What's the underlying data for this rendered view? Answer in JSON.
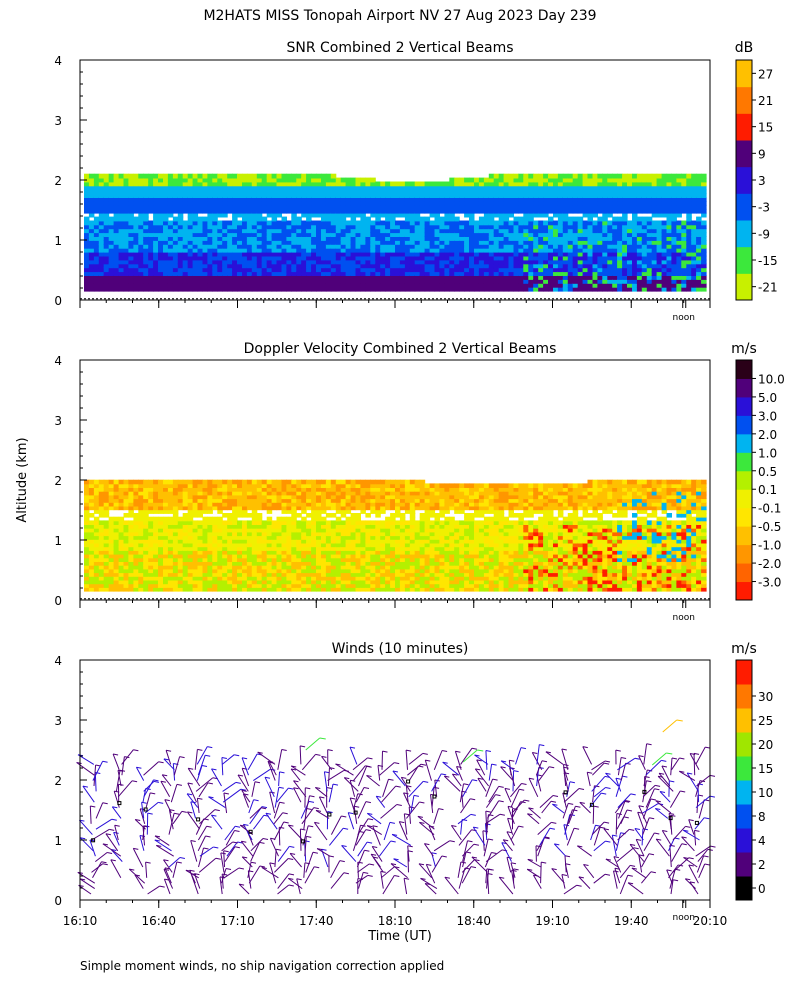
{
  "title": "M2HATS MISS Tonopah Airport NV  27 Aug 2023 Day 239",
  "ylabel": "Altitude (km)",
  "xlabel": "Time (UT)",
  "footnote": "Simple moment winds, no ship navigation correction applied",
  "noon_label": "noon",
  "chart_data": [
    {
      "type": "heatmap",
      "title": "SNR Combined 2 Vertical Beams",
      "units": "dB",
      "ylim": [
        0,
        4
      ],
      "yticks": [
        "0",
        "1",
        "2",
        "3",
        "4"
      ],
      "time_range": [
        "16:10",
        "20:10"
      ],
      "data_top_km": 2.1,
      "colorbar": {
        "labels": [
          "-21",
          "-15",
          "-9",
          "-3",
          "3",
          "9",
          "15",
          "21",
          "27"
        ],
        "colors": [
          "#c8f000",
          "#3ce83c",
          "#00b4f0",
          "#0050f0",
          "#2a10d8",
          "#50007a",
          "#ff1c00",
          "#ff7800",
          "#ffc000"
        ]
      }
    },
    {
      "type": "heatmap",
      "title": "Doppler Velocity Combined 2 Vertical Beams",
      "units": "m/s",
      "ylim": [
        0,
        4
      ],
      "yticks": [
        "0",
        "1",
        "2",
        "3",
        "4"
      ],
      "time_range": [
        "16:10",
        "20:10"
      ],
      "data_top_km": 2.0,
      "colorbar": {
        "labels": [
          "-3.0",
          "-2.0",
          "-1.0",
          "-0.5",
          "-0.1",
          "0.1",
          "0.5",
          "1.0",
          "2.0",
          "3.0",
          "5.0",
          "10.0"
        ],
        "colors": [
          "#ff1c00",
          "#ff6400",
          "#ff9600",
          "#ffc000",
          "#ffe600",
          "#f0f000",
          "#b4f000",
          "#3ce83c",
          "#00b4f0",
          "#0050f0",
          "#2a10d8",
          "#50007a",
          "#2a0018"
        ]
      }
    },
    {
      "type": "scatter",
      "title": "Winds (10 minutes)",
      "units": "m/s",
      "ylim": [
        0,
        4
      ],
      "yticks": [
        "0",
        "1",
        "2",
        "3",
        "4"
      ],
      "xticks": [
        "16:10",
        "16:40",
        "17:10",
        "17:40",
        "18:10",
        "18:40",
        "19:10",
        "19:40",
        "20:10"
      ],
      "time_range": [
        "16:10",
        "20:10"
      ],
      "colorbar": {
        "labels": [
          "0",
          "2",
          "4",
          "8",
          "10",
          "15",
          "20",
          "25",
          "30"
        ],
        "colors": [
          "#000000",
          "#50007a",
          "#2a10d8",
          "#0050f0",
          "#00b4f0",
          "#3ce83c",
          "#a0e600",
          "#ffc000",
          "#ff7800",
          "#ff1c00"
        ]
      }
    }
  ]
}
